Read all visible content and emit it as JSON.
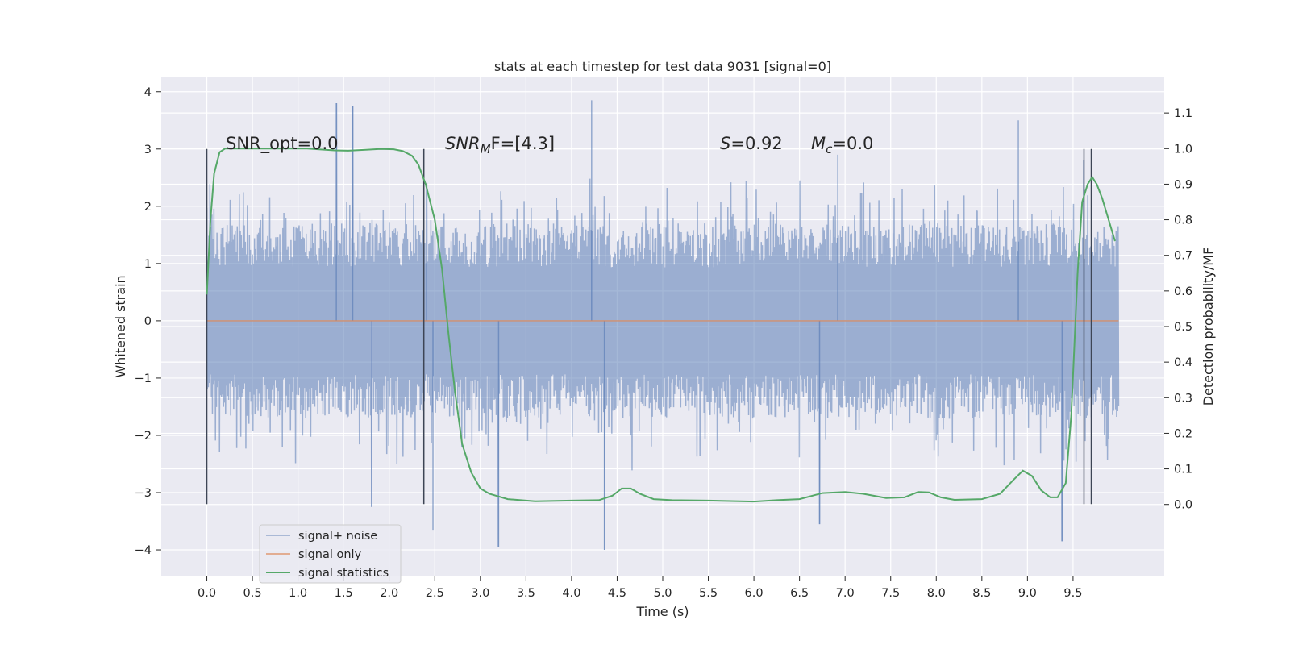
{
  "chart_data": {
    "type": "line",
    "title": "stats at each timestep for test data 9031 [signal=0]",
    "xlabel": "Time (s)",
    "ylabel": "Whitened strain",
    "y2label": "Detection probability/MF",
    "xlim": [
      -0.5,
      10.5
    ],
    "ylim": [
      -4.45,
      4.25
    ],
    "y2lim": [
      -0.2,
      1.2
    ],
    "x_ticks": [
      "0.0",
      "0.5",
      "1.0",
      "1.5",
      "2.0",
      "2.5",
      "3.0",
      "3.5",
      "4.0",
      "4.5",
      "5.0",
      "5.5",
      "6.0",
      "6.5",
      "7.0",
      "7.5",
      "8.0",
      "8.5",
      "9.0",
      "9.5"
    ],
    "y_ticks": [
      "4",
      "3",
      "2",
      "1",
      "0",
      "−1",
      "−2",
      "−3",
      "−4"
    ],
    "y2_ticks": [
      "1.1",
      "1.0",
      "0.9",
      "0.8",
      "0.7",
      "0.6",
      "0.5",
      "0.4",
      "0.3",
      "0.2",
      "0.1",
      "0.0"
    ],
    "grid": true,
    "legend_position": "lower-left",
    "legend": [
      "signal+ noise",
      "signal only",
      "signal statistics"
    ],
    "annotations": {
      "snr_opt": "SNR_opt=0.0",
      "snr_mf_sym": "SNR",
      "snr_mf_sub": "M",
      "snr_mf_rest": "F=[4.3]",
      "s_sym": "S",
      "s_rest": "=0.92",
      "mc_sym": "M",
      "mc_sub": "c",
      "mc_rest": "=0.0"
    },
    "colors": {
      "background": "#eaeaf2",
      "grid": "#ffffff",
      "noise": "#4c72b0",
      "signal_only": "#dd8452",
      "statistics": "#55a868",
      "markers": "#3d4555"
    },
    "signal_noise": {
      "x_range": [
        0.0,
        10.0
      ],
      "typical_band": [
        -1.7,
        1.7
      ],
      "peaks": [
        [
          1.42,
          3.8
        ],
        [
          1.6,
          3.75
        ],
        [
          2.41,
          2.4
        ],
        [
          4.22,
          3.85
        ],
        [
          4.36,
          -4.0
        ],
        [
          3.2,
          -3.95
        ],
        [
          2.48,
          -3.65
        ],
        [
          9.38,
          -3.85
        ],
        [
          8.9,
          3.5
        ],
        [
          1.81,
          -3.25
        ],
        [
          6.72,
          -3.55
        ],
        [
          6.92,
          2.9
        ],
        [
          9.62,
          2.8
        ]
      ]
    },
    "signal_only": {
      "x": [
        0.0,
        10.0
      ],
      "y": [
        0.0,
        0.0
      ]
    },
    "statistics": {
      "x": [
        0.0,
        0.04,
        0.08,
        0.14,
        0.2,
        0.3,
        0.5,
        0.8,
        1.1,
        1.4,
        1.55,
        1.7,
        1.9,
        2.05,
        2.15,
        2.25,
        2.32,
        2.4,
        2.5,
        2.58,
        2.65,
        2.72,
        2.8,
        2.9,
        3.0,
        3.1,
        3.3,
        3.6,
        4.0,
        4.3,
        4.45,
        4.55,
        4.65,
        4.75,
        4.9,
        5.1,
        5.5,
        6.0,
        6.25,
        6.5,
        6.75,
        7.0,
        7.2,
        7.45,
        7.65,
        7.8,
        7.92,
        8.05,
        8.2,
        8.5,
        8.7,
        8.85,
        8.95,
        9.05,
        9.15,
        9.25,
        9.33,
        9.42,
        9.48,
        9.55,
        9.6,
        9.66,
        9.71,
        9.76,
        9.82,
        9.89,
        9.96
      ],
      "y": [
        0.59,
        0.8,
        0.93,
        0.99,
        1.0,
        1.0,
        1.0,
        1.0,
        1.0,
        0.995,
        0.994,
        0.996,
        0.999,
        0.998,
        0.993,
        0.98,
        0.955,
        0.9,
        0.8,
        0.66,
        0.48,
        0.32,
        0.17,
        0.09,
        0.045,
        0.03,
        0.015,
        0.009,
        0.011,
        0.012,
        0.025,
        0.045,
        0.045,
        0.03,
        0.015,
        0.012,
        0.011,
        0.008,
        0.012,
        0.015,
        0.032,
        0.035,
        0.03,
        0.018,
        0.02,
        0.035,
        0.034,
        0.02,
        0.013,
        0.015,
        0.03,
        0.07,
        0.095,
        0.08,
        0.04,
        0.02,
        0.02,
        0.06,
        0.25,
        0.65,
        0.85,
        0.9,
        0.92,
        0.9,
        0.86,
        0.8,
        0.74
      ]
    },
    "markers": [
      {
        "x": 0.0,
        "y_from": -3.2,
        "y_to": 3.0
      },
      {
        "x": 2.38,
        "y_from": -3.2,
        "y_to": 3.0
      },
      {
        "x": 9.62,
        "y_from": -3.2,
        "y_to": 3.0
      },
      {
        "x": 9.7,
        "y_from": -3.2,
        "y_to": 3.0
      }
    ]
  }
}
